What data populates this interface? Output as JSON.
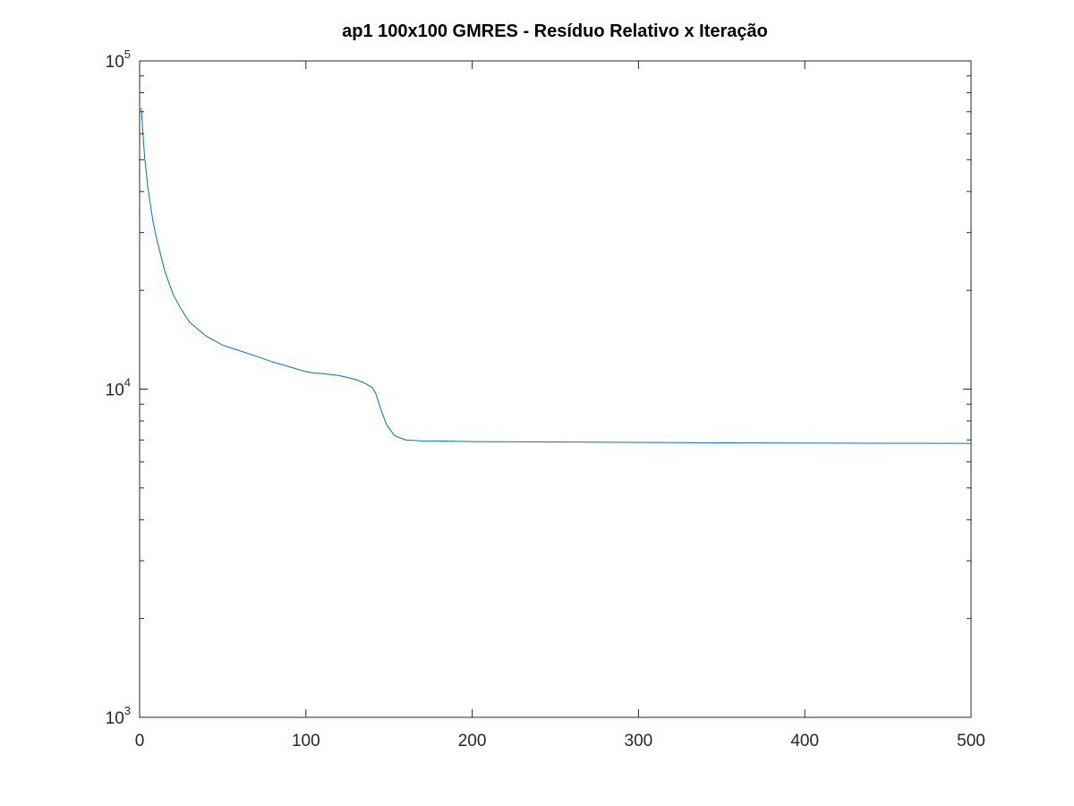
{
  "chart_data": {
    "type": "line",
    "title": "ap1 100x100 GMRES - Resíduo Relativo x Iteração",
    "xlabel": "",
    "ylabel": "",
    "xlim": [
      0,
      500
    ],
    "ylim": [
      1000,
      100000
    ],
    "yscale": "log",
    "grid": false,
    "legend": "none",
    "x_ticks": [
      {
        "value": 0,
        "label": "0"
      },
      {
        "value": 100,
        "label": "100"
      },
      {
        "value": 200,
        "label": "200"
      },
      {
        "value": 300,
        "label": "300"
      },
      {
        "value": 400,
        "label": "400"
      },
      {
        "value": 500,
        "label": "500"
      }
    ],
    "y_ticks": [
      {
        "value": 1000,
        "base": "10",
        "exp": "3"
      },
      {
        "value": 10000,
        "base": "10",
        "exp": "4"
      },
      {
        "value": 100000,
        "base": "10",
        "exp": "5"
      }
    ],
    "series": [
      {
        "color": "#0072bd",
        "x": [
          1,
          2,
          3,
          5,
          8,
          10,
          15,
          20,
          25,
          30,
          40,
          50,
          52,
          60,
          70,
          80,
          90,
          100,
          105,
          110,
          120,
          130,
          135,
          140,
          142,
          145,
          148,
          150,
          153,
          155,
          160,
          170,
          180,
          200,
          250,
          300,
          350,
          400,
          450,
          500
        ],
        "y": [
          72000,
          60000,
          51000,
          41000,
          32500,
          29000,
          23000,
          19500,
          17500,
          16000,
          14500,
          13600,
          13500,
          13100,
          12600,
          12100,
          11700,
          11300,
          11200,
          11150,
          11000,
          10700,
          10450,
          10100,
          9700,
          8700,
          7900,
          7600,
          7250,
          7150,
          7000,
          6950,
          6950,
          6920,
          6900,
          6880,
          6860,
          6850,
          6840,
          6830
        ]
      }
    ]
  }
}
